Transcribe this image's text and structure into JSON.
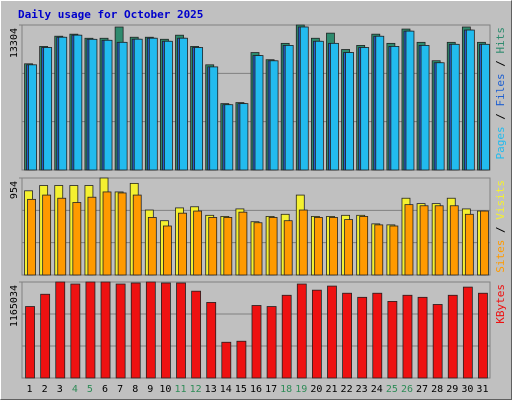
{
  "chart_data": [
    {
      "type": "bar",
      "title": "Daily usage for October 2025",
      "separator": "/",
      "ylim": [
        0,
        13304
      ],
      "yticks": [
        13304
      ],
      "grid": true,
      "series": [
        {
          "name": "Hits",
          "color": "#2e8b6e",
          "values": [
            9745,
            11338,
            12275,
            12462,
            12087,
            12087,
            13118,
            12181,
            12181,
            11994,
            12368,
            11338,
            9651,
            6091,
            6184,
            10776,
            10120,
            11619,
            13304,
            12087,
            12556,
            11057,
            11432,
            12462,
            11619,
            12931,
            11713,
            10026,
            11713,
            13118,
            11713
          ]
        },
        {
          "name": "Files",
          "color": "#2060d0",
          "values": [
            9650,
            11240,
            12180,
            12370,
            11990,
            11900,
            11713,
            12000,
            12090,
            11810,
            12090,
            11240,
            9460,
            5990,
            6090,
            10500,
            10020,
            11430,
            13120,
            11810,
            11619,
            10780,
            11240,
            12270,
            11340,
            12740,
            11430,
            9840,
            11530,
            12840,
            11530
          ]
        },
        {
          "name": "Pages",
          "color": "#22bbee",
          "values": [
            9650,
            11240,
            12180,
            12370,
            11990,
            11900,
            11713,
            12000,
            12090,
            11810,
            12090,
            11240,
            9460,
            5990,
            6090,
            10500,
            10020,
            11430,
            13120,
            11810,
            11619,
            10780,
            11240,
            12270,
            11340,
            12740,
            11430,
            9840,
            11530,
            12840,
            11530
          ]
        }
      ]
    },
    {
      "type": "bar",
      "separator": "/",
      "ylim": [
        0,
        954
      ],
      "yticks": [
        954
      ],
      "grid": true,
      "series": [
        {
          "name": "Visits",
          "color": "#f4f030",
          "values": [
            828,
            880,
            880,
            880,
            880,
            954,
            817,
            901,
            639,
            534,
            660,
            671,
            587,
            576,
            650,
            524,
            576,
            597,
            786,
            576,
            576,
            587,
            587,
            503,
            493,
            755,
            702,
            702,
            755,
            650,
            629
          ]
        },
        {
          "name": "Sites",
          "color": "#ff9a00",
          "values": [
            744,
            786,
            755,
            713,
            765,
            817,
            807,
            786,
            566,
            482,
            608,
            629,
            566,
            566,
            618,
            514,
            566,
            534,
            639,
            566,
            566,
            545,
            576,
            493,
            482,
            692,
            681,
            681,
            681,
            597,
            629
          ]
        }
      ]
    },
    {
      "type": "bar",
      "ylim": [
        0,
        1165034
      ],
      "yticks": [
        1165034
      ],
      "grid": true,
      "categories": [
        "1",
        "2",
        "3",
        "4",
        "5",
        "6",
        "7",
        "8",
        "9",
        "10",
        "11",
        "12",
        "13",
        "14",
        "15",
        "16",
        "17",
        "18",
        "19",
        "20",
        "21",
        "22",
        "23",
        "24",
        "25",
        "26",
        "27",
        "28",
        "29",
        "30",
        "31"
      ],
      "category_colors": [
        "#000000",
        "#000000",
        "#000000",
        "#2e8b57",
        "#2e8b57",
        "#000000",
        "#000000",
        "#000000",
        "#000000",
        "#000000",
        "#2e8b57",
        "#2e8b57",
        "#000000",
        "#000000",
        "#000000",
        "#000000",
        "#000000",
        "#2e8b57",
        "#2e8b57",
        "#000000",
        "#000000",
        "#000000",
        "#000000",
        "#000000",
        "#2e8b57",
        "#2e8b57",
        "#000000",
        "#000000",
        "#000000",
        "#000000",
        "#000000"
      ],
      "series": [
        {
          "name": "KBytes",
          "color": "#ee1111",
          "values": [
            867580,
            1016308,
            1165034,
            1140248,
            1165034,
            1165034,
            1140248,
            1152642,
            1165034,
            1152642,
            1152642,
            1053490,
            917156,
            433790,
            446184,
            879974,
            867580,
            1003914,
            1140248,
            1065884,
            1115460,
            1028702,
            979126,
            1028702,
            929550,
            1003914,
            979126,
            892368,
            1003914,
            1103066,
            1028702
          ]
        }
      ]
    }
  ]
}
